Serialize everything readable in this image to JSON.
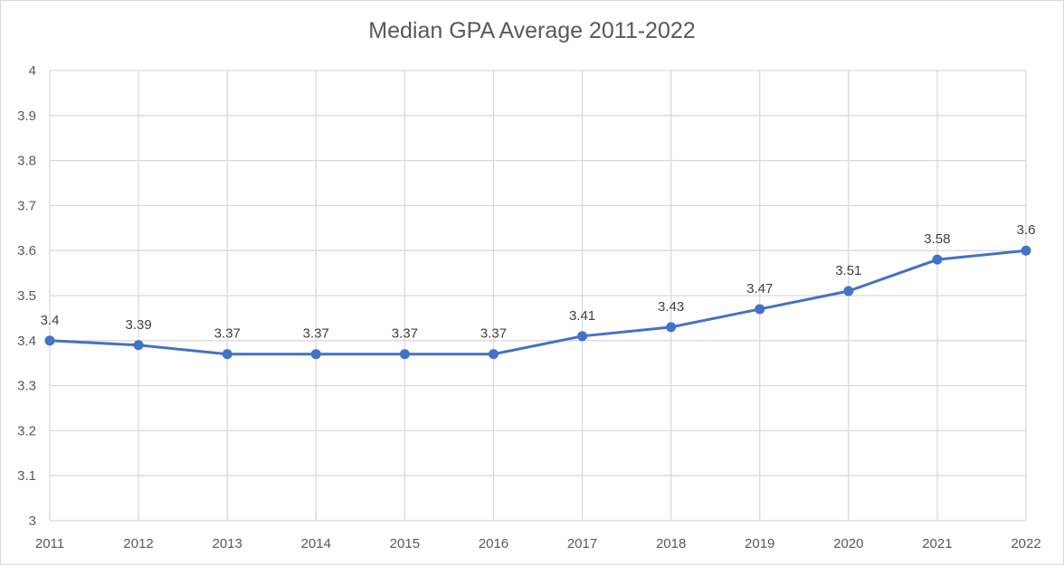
{
  "chart_data": {
    "type": "line",
    "title": "Median GPA Average 2011-2022",
    "xlabel": "",
    "ylabel": "",
    "categories": [
      "2011",
      "2012",
      "2013",
      "2014",
      "2015",
      "2016",
      "2017",
      "2018",
      "2019",
      "2020",
      "2021",
      "2022"
    ],
    "series": [
      {
        "values": [
          3.4,
          3.39,
          3.37,
          3.37,
          3.37,
          3.37,
          3.41,
          3.43,
          3.47,
          3.51,
          3.58,
          3.6
        ]
      }
    ],
    "data_labels": [
      "3.4",
      "3.39",
      "3.37",
      "3.37",
      "3.37",
      "3.37",
      "3.41",
      "3.43",
      "3.47",
      "3.51",
      "3.58",
      "3.6"
    ],
    "yticks": [
      "3",
      "3.1",
      "3.2",
      "3.3",
      "3.4",
      "3.5",
      "3.6",
      "3.7",
      "3.8",
      "3.9",
      "4"
    ],
    "ylim": [
      3,
      4
    ],
    "grid": true,
    "legend": "none",
    "line_color": "#4472C4",
    "grid_color": "#d9d9d9"
  }
}
